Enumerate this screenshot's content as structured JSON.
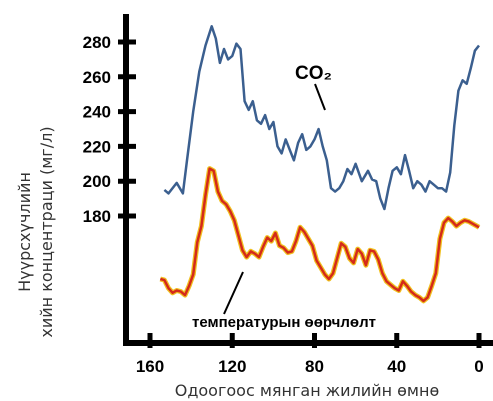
{
  "chart_data": {
    "type": "line",
    "title": "",
    "xlabel": "Одоогоос мянган жилийн өмнө",
    "ylabel": "Нүүрсхүчлийн хийн концентраци (мг/л)",
    "xlim": [
      160,
      0
    ],
    "ylim": [
      160,
      290
    ],
    "x_ticks": [
      "160",
      "120",
      "80",
      "40",
      "0"
    ],
    "y_ticks": [
      "280",
      "260",
      "240",
      "220",
      "200",
      "180"
    ],
    "grid": false,
    "annotations": {
      "co2": "CO₂",
      "temperature": "температурын өөрчлөлт"
    },
    "series": [
      {
        "name": "CO₂",
        "color": "#3b5f8f",
        "x": [
          153,
          151,
          147,
          144,
          142,
          139,
          136,
          133,
          130,
          128,
          126,
          124,
          122,
          120,
          118,
          116,
          114,
          112,
          110,
          108,
          106,
          104,
          102,
          100,
          98,
          96,
          94,
          92,
          90,
          88,
          86,
          84,
          82,
          80,
          78,
          76,
          74,
          72,
          70,
          68,
          66,
          64,
          62,
          60,
          57,
          54,
          52,
          50,
          48,
          46,
          44,
          42,
          40,
          38,
          36,
          34,
          32,
          30,
          28,
          26,
          24,
          22,
          20,
          18,
          16,
          14,
          12,
          10,
          8,
          6,
          4,
          2,
          0
        ],
        "values": [
          195,
          193,
          199,
          193,
          212,
          240,
          263,
          278,
          289,
          282,
          268,
          276,
          270,
          272,
          279,
          276,
          246,
          241,
          246,
          235,
          233,
          238,
          230,
          234,
          220,
          216,
          224,
          218,
          212,
          222,
          227,
          218,
          220,
          224,
          230,
          220,
          212,
          196,
          194,
          196,
          200,
          207,
          204,
          210,
          200,
          206,
          201,
          200,
          190,
          184,
          196,
          206,
          208,
          204,
          215,
          206,
          196,
          200,
          198,
          194,
          200,
          198,
          196,
          196,
          194,
          205,
          232,
          252,
          258,
          256,
          265,
          275,
          278
        ]
      },
      {
        "name": "температурын өөрчлөлт",
        "color": "#d42a1a",
        "x": [
          155,
          153,
          151,
          149,
          147,
          145,
          143,
          141,
          139,
          137,
          135,
          133,
          131,
          129,
          127,
          125,
          123,
          121,
          119,
          117,
          115,
          113,
          111,
          109,
          107,
          105,
          103,
          101,
          99,
          97,
          95,
          93,
          91,
          89,
          87,
          85,
          83,
          81,
          79,
          77,
          75,
          73,
          71,
          69,
          67,
          65,
          63,
          61,
          59,
          57,
          55,
          53,
          51,
          49,
          47,
          45,
          43,
          41,
          39,
          37,
          35,
          33,
          31,
          29,
          27,
          25,
          23,
          21,
          19,
          17,
          15,
          13,
          11,
          9,
          7,
          5,
          3,
          1,
          0
        ],
        "values": [
          -2.0,
          -2.1,
          -2.8,
          -3.2,
          -3.0,
          -3.1,
          -3.4,
          -2.6,
          -1.6,
          1.2,
          2.6,
          5.3,
          7.6,
          7.4,
          5.6,
          4.8,
          4.5,
          3.9,
          3.1,
          1.8,
          0.5,
          -0.1,
          0.4,
          0.2,
          -0.1,
          0.8,
          1.6,
          1.3,
          2.0,
          0.9,
          0.7,
          0.3,
          0.4,
          1.3,
          2.5,
          2.1,
          1.5,
          0.9,
          -0.4,
          -1.0,
          -1.6,
          -2.0,
          -1.5,
          -0.2,
          1.1,
          0.8,
          -0.2,
          -0.6,
          0.6,
          0.2,
          -0.8,
          0.5,
          0.4,
          -0.3,
          -1.5,
          -2.2,
          -2.5,
          -2.8,
          -3.0,
          -2.2,
          -2.6,
          -3.1,
          -3.4,
          -3.6,
          -3.9,
          -3.6,
          -2.6,
          -1.5,
          1.5,
          2.9,
          3.3,
          3.0,
          2.6,
          2.9,
          3.1,
          3.0,
          2.8,
          2.6,
          2.5
        ]
      }
    ]
  }
}
